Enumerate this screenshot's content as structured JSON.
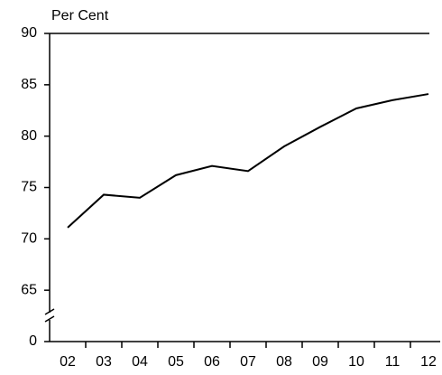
{
  "chart_data": {
    "type": "line",
    "y_label": "Per Cent",
    "categories": [
      "02",
      "03",
      "04",
      "05",
      "06",
      "07",
      "08",
      "09",
      "10",
      "11",
      "12"
    ],
    "values": [
      71.1,
      74.3,
      74.0,
      76.2,
      77.1,
      76.6,
      79.0,
      80.9,
      82.7,
      83.5,
      84.1
    ],
    "color": "#000000",
    "ylim": [
      0,
      90
    ],
    "axis_break": [
      0,
      60
    ],
    "yticks": [
      0,
      65,
      70,
      75,
      80,
      85,
      90
    ]
  }
}
